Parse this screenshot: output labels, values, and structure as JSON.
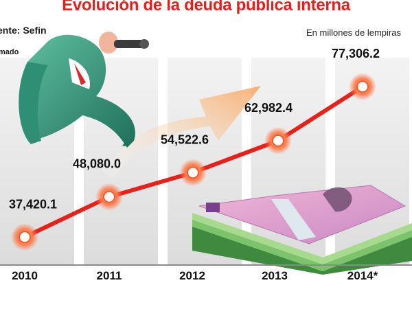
{
  "header": {
    "title": "Evolución de la deuda pública interna",
    "source": "ente: Sefin",
    "note": "mado",
    "units": "En millones de lempiras"
  },
  "colors": {
    "title": "#e2211c",
    "line": "#e8201a",
    "marker_glow": "#ff6a3d",
    "band": "#e6e6e6"
  },
  "chart_data": {
    "type": "line",
    "title": "Evolución de la deuda pública interna",
    "ylabel": "En millones de lempiras",
    "xlabel": "",
    "categories": [
      "2010",
      "2011",
      "2012",
      "2013",
      "2014*"
    ],
    "series": [
      {
        "name": "Deuda pública interna",
        "values": [
          37420.1,
          48080.0,
          54522.6,
          62982.4,
          77306.2
        ],
        "labels": [
          "37,420.1",
          "48,080.0",
          "54,522.6",
          "62,982.4",
          "77,306.2"
        ]
      }
    ],
    "ylim": [
      30000,
      85000
    ],
    "grid": false,
    "legend": "none"
  }
}
